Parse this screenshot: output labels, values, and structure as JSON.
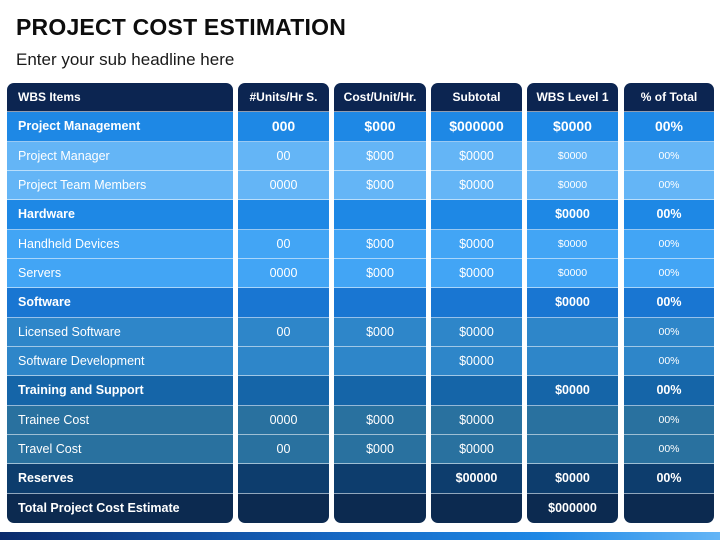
{
  "title": "PROJECT COST ESTIMATION",
  "subtitle": "Enter your sub headline here",
  "colors": {
    "header": "#0c2551",
    "row_colors": [
      "#1e88e5",
      "#64b5f6",
      "#64b5f6",
      "#1e88e5",
      "#42a5f5",
      "#42a5f5",
      "#1976d2",
      "#2e86c9",
      "#2e86c9",
      "#1565a8",
      "#29719f",
      "#29719f",
      "#0d3d6d",
      "#0c2a50"
    ]
  },
  "columns": [
    {
      "key": "item",
      "label": "WBS Items"
    },
    {
      "key": "units",
      "label": "#Units/Hr S."
    },
    {
      "key": "cost",
      "label": "Cost/Unit/Hr."
    },
    {
      "key": "subtotal",
      "label": "Subtotal"
    },
    {
      "key": "wbs",
      "label": "WBS Level 1"
    },
    {
      "key": "pct",
      "label": "% of Total"
    }
  ],
  "rows": [
    {
      "item": "Project Management",
      "units": "000",
      "cost": "$000",
      "subtotal": "$000000",
      "wbs": "$0000",
      "pct": "00%",
      "bold": true,
      "big": true
    },
    {
      "item": "Project Manager",
      "units": "00",
      "cost": "$000",
      "subtotal": "$0000",
      "wbs": "$0000",
      "pct": "00%"
    },
    {
      "item": "Project Team Members",
      "units": "0000",
      "cost": "$000",
      "subtotal": "$0000",
      "wbs": "$0000",
      "pct": "00%"
    },
    {
      "item": "Hardware",
      "units": "",
      "cost": "",
      "subtotal": "",
      "wbs": "$0000",
      "pct": "00%",
      "bold": true
    },
    {
      "item": "Handheld Devices",
      "units": "00",
      "cost": "$000",
      "subtotal": "$0000",
      "wbs": "$0000",
      "pct": "00%"
    },
    {
      "item": "Servers",
      "units": "0000",
      "cost": "$000",
      "subtotal": "$0000",
      "wbs": "$0000",
      "pct": "00%"
    },
    {
      "item": "Software",
      "units": "",
      "cost": "",
      "subtotal": "",
      "wbs": "$0000",
      "pct": "00%",
      "bold": true
    },
    {
      "item": "Licensed Software",
      "units": "00",
      "cost": "$000",
      "subtotal": "$0000",
      "wbs": "",
      "pct": "00%"
    },
    {
      "item": "Software Development",
      "units": "",
      "cost": "",
      "subtotal": "$0000",
      "wbs": "",
      "pct": "00%"
    },
    {
      "item": "Training and Support",
      "units": "",
      "cost": "",
      "subtotal": "",
      "wbs": "$0000",
      "pct": "00%",
      "bold": true
    },
    {
      "item": "Trainee Cost",
      "units": "0000",
      "cost": "$000",
      "subtotal": "$0000",
      "wbs": "",
      "pct": "00%"
    },
    {
      "item": "Travel Cost",
      "units": "00",
      "cost": "$000",
      "subtotal": "$0000",
      "wbs": "",
      "pct": "00%"
    },
    {
      "item": "Reserves",
      "units": "",
      "cost": "",
      "subtotal": "$00000",
      "wbs": "$0000",
      "pct": "00%",
      "bold": true
    },
    {
      "item": "Total Project Cost Estimate",
      "units": "",
      "cost": "",
      "subtotal": "",
      "wbs": "$000000",
      "pct": "",
      "bold": true
    }
  ]
}
